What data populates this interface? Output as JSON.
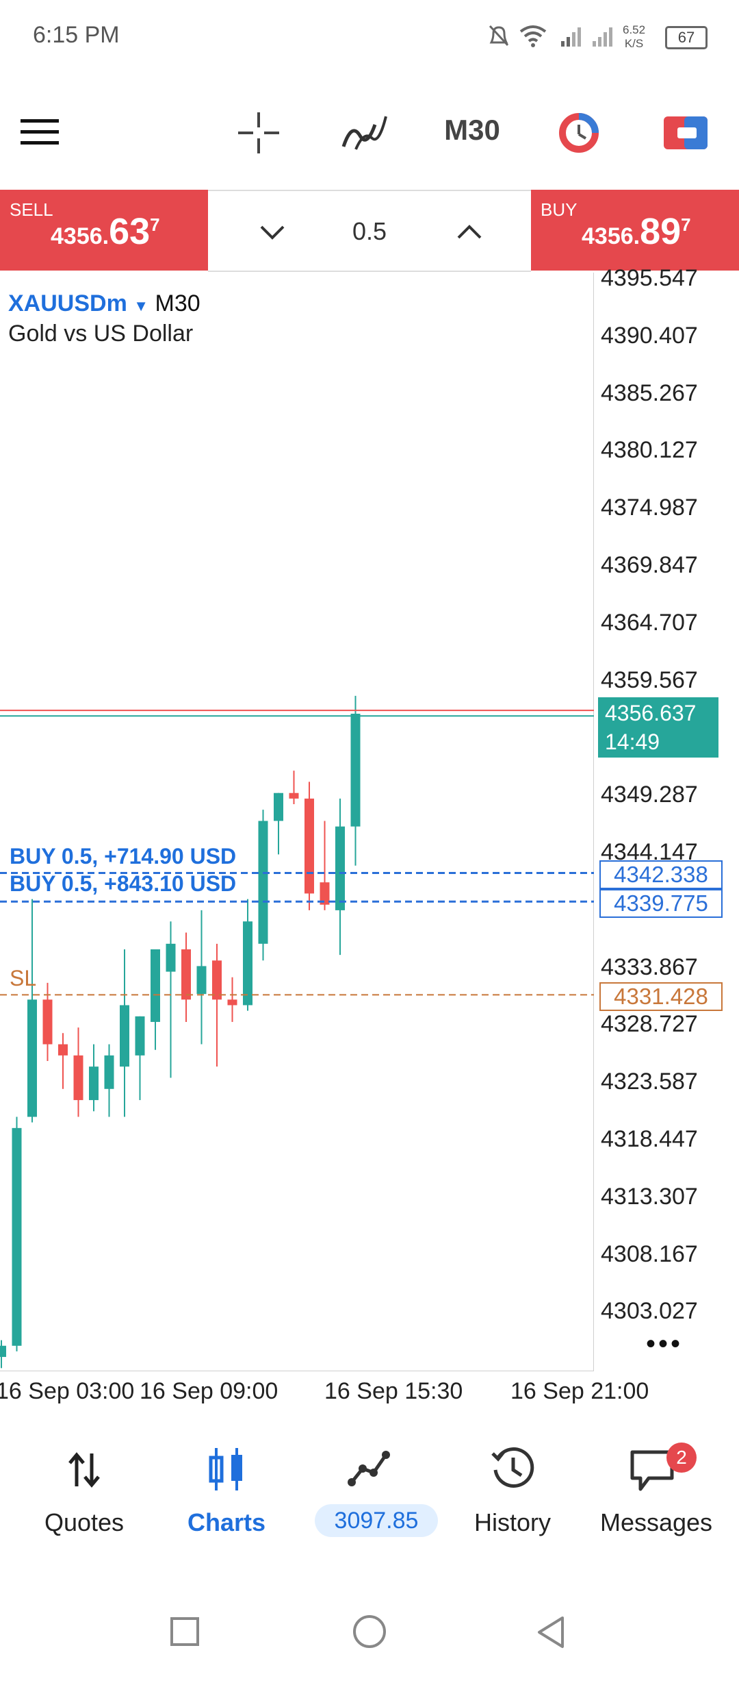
{
  "status_bar": {
    "time": "6:15 PM",
    "net_speed_value": "6.52",
    "net_speed_unit": "K/S",
    "battery": "67",
    "icons": [
      "mute-bell-icon",
      "wifi-icon",
      "signal-icon",
      "signal-icon-2",
      "battery-icon"
    ]
  },
  "toolbar": {
    "timeframe": "M30",
    "icons": [
      "menu-icon",
      "crosshair-icon",
      "indicators-icon",
      "timeframe-button",
      "trade-icon",
      "one-click-icon"
    ]
  },
  "trade_bar": {
    "sell_label": "SELL",
    "sell_price_prefix": "4356.",
    "sell_price_big": "63",
    "sell_price_sup": "7",
    "buy_label": "BUY",
    "buy_price_prefix": "4356.",
    "buy_price_big": "89",
    "buy_price_sup": "7",
    "lot": "0.5"
  },
  "symbol": {
    "name": "XAUUSDm",
    "timeframe": "M30",
    "description": "Gold vs US Dollar"
  },
  "chart_data": {
    "type": "candlestick",
    "y_ticks": [
      "4395.547",
      "4390.407",
      "4385.267",
      "4380.127",
      "4374.987",
      "4369.847",
      "4364.707",
      "4359.567",
      "4349.287",
      "4344.147",
      "4333.867",
      "4328.727",
      "4323.587",
      "4318.447",
      "4313.307",
      "4308.167",
      "4303.027"
    ],
    "y_range": [
      4298.0,
      4397.5
    ],
    "x_ticks": [
      "16 Sep 03:00",
      "16 Sep 09:00",
      "16 Sep 15:30",
      "16 Sep 21:00"
    ],
    "candles": [
      {
        "o": 4299.0,
        "h": 4300.5,
        "l": 4298.0,
        "c": 4300.0
      },
      {
        "o": 4300.0,
        "h": 4320.5,
        "l": 4299.5,
        "c": 4319.5
      },
      {
        "o": 4320.5,
        "h": 4340.0,
        "l": 4320.0,
        "c": 4331.0
      },
      {
        "o": 4331.0,
        "h": 4332.5,
        "l": 4325.5,
        "c": 4327.0
      },
      {
        "o": 4327.0,
        "h": 4328.0,
        "l": 4323.0,
        "c": 4326.0
      },
      {
        "o": 4326.0,
        "h": 4328.5,
        "l": 4320.5,
        "c": 4322.0
      },
      {
        "o": 4322.0,
        "h": 4327.0,
        "l": 4321.0,
        "c": 4325.0
      },
      {
        "o": 4323.0,
        "h": 4327.0,
        "l": 4320.5,
        "c": 4326.0
      },
      {
        "o": 4325.0,
        "h": 4335.5,
        "l": 4320.5,
        "c": 4330.5
      },
      {
        "o": 4326.0,
        "h": 4329.5,
        "l": 4322.0,
        "c": 4329.5
      },
      {
        "o": 4329.0,
        "h": 4335.0,
        "l": 4326.5,
        "c": 4335.5
      },
      {
        "o": 4333.5,
        "h": 4338.0,
        "l": 4324.0,
        "c": 4336.0
      },
      {
        "o": 4335.5,
        "h": 4337.0,
        "l": 4329.0,
        "c": 4331.0
      },
      {
        "o": 4331.5,
        "h": 4339.0,
        "l": 4327.0,
        "c": 4334.0
      },
      {
        "o": 4334.5,
        "h": 4336.0,
        "l": 4325.0,
        "c": 4331.0
      },
      {
        "o": 4331.0,
        "h": 4333.0,
        "l": 4329.0,
        "c": 4330.5
      },
      {
        "o": 4330.5,
        "h": 4340.0,
        "l": 4330.0,
        "c": 4338.0
      },
      {
        "o": 4336.0,
        "h": 4348.0,
        "l": 4334.5,
        "c": 4347.0
      },
      {
        "o": 4347.0,
        "h": 4349.5,
        "l": 4344.0,
        "c": 4349.5
      },
      {
        "o": 4349.5,
        "h": 4351.5,
        "l": 4348.5,
        "c": 4349.0
      },
      {
        "o": 4349.0,
        "h": 4350.5,
        "l": 4339.0,
        "c": 4340.5
      },
      {
        "o": 4341.5,
        "h": 4347.0,
        "l": 4339.0,
        "c": 4339.5
      },
      {
        "o": 4339.0,
        "h": 4349.0,
        "l": 4335.0,
        "c": 4346.5
      },
      {
        "o": 4346.5,
        "h": 4358.2,
        "l": 4343.0,
        "c": 4356.6
      }
    ],
    "current_price": "4356.637",
    "countdown": "14:49",
    "positions": [
      {
        "label": "BUY 0.5,  +714.90 USD",
        "price": "4342.338"
      },
      {
        "label": "BUY 0.5,  +843.10 USD",
        "price": "4339.775"
      }
    ],
    "sl_label": "SL",
    "sl_price": "4331.428",
    "grid": false,
    "colors": {
      "bull": "#26a69a",
      "bear": "#ef5350",
      "position": "#2a6fd8",
      "sl": "#c8773a",
      "bid": "#26a69a",
      "ask": "#ef5350"
    }
  },
  "bottom_nav": {
    "items": [
      {
        "label": "Quotes",
        "icon": "quotes-arrows-icon"
      },
      {
        "label": "Charts",
        "icon": "charts-candles-icon"
      },
      {
        "label": "3097.85",
        "icon": "trade-chart-icon"
      },
      {
        "label": "History",
        "icon": "history-clock-icon"
      },
      {
        "label": "Messages",
        "icon": "messages-icon"
      }
    ],
    "messages_badge": "2"
  },
  "system_nav": {
    "icons": [
      "recents-square-icon",
      "home-circle-icon",
      "back-triangle-icon"
    ]
  }
}
